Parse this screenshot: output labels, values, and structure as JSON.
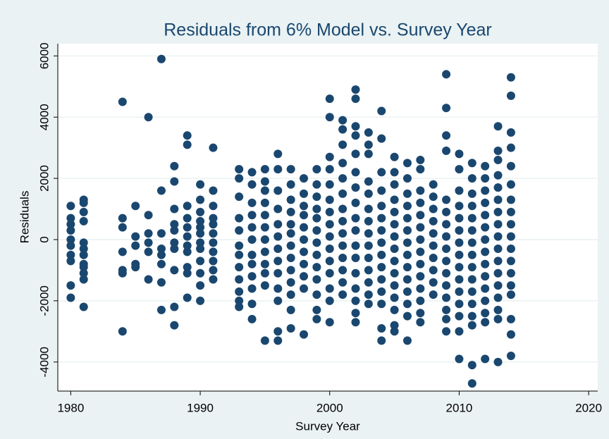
{
  "chart_data": {
    "type": "scatter",
    "title": "Residuals from 6% Model vs. Survey Year",
    "x_label": "Survey Year",
    "y_label": "Residuals",
    "color": "#1a476f",
    "grid": true,
    "xlim": [
      1979,
      2020.7
    ],
    "ylim": [
      -4950,
      6400
    ],
    "xticks": [
      1980,
      1990,
      2000,
      2010,
      2020
    ],
    "yticks": [
      -4000,
      -2000,
      0,
      2000,
      4000,
      6000
    ],
    "x": [
      1980,
      1980,
      1980,
      1980,
      1980,
      1980,
      1980,
      1980,
      1980,
      1980,
      1981,
      1981,
      1981,
      1981,
      1981,
      1981,
      1981,
      1981,
      1981,
      1981,
      1981,
      1981,
      1984,
      1984,
      1984,
      1984,
      1984,
      1984,
      1984,
      1985,
      1985,
      1985,
      1985,
      1985,
      1986,
      1986,
      1986,
      1986,
      1986,
      1986,
      1987,
      1987,
      1987,
      1987,
      1987,
      1987,
      1987,
      1987,
      1988,
      1988,
      1988,
      1988,
      1988,
      1988,
      1988,
      1988,
      1988,
      1988,
      1989,
      1989,
      1989,
      1989,
      1989,
      1989,
      1989,
      1989,
      1989,
      1989,
      1989,
      1990,
      1990,
      1990,
      1990,
      1990,
      1990,
      1990,
      1990,
      1990,
      1990,
      1990,
      1990,
      1991,
      1991,
      1991,
      1991,
      1991,
      1991,
      1991,
      1991,
      1991,
      1991,
      1991,
      1993,
      1993,
      1993,
      1993,
      1993,
      1993,
      1993,
      1993,
      1993,
      1993,
      1993,
      1993,
      1994,
      1994,
      1994,
      1994,
      1994,
      1994,
      1994,
      1994,
      1994,
      1994,
      1994,
      1994,
      1995,
      1995,
      1995,
      1995,
      1995,
      1995,
      1995,
      1995,
      1995,
      1995,
      1995,
      1995,
      1996,
      1996,
      1996,
      1996,
      1996,
      1996,
      1996,
      1996,
      1996,
      1996,
      1996,
      1996,
      1996,
      1997,
      1997,
      1997,
      1997,
      1997,
      1997,
      1997,
      1997,
      1997,
      1997,
      1997,
      1997,
      1997,
      1998,
      1998,
      1998,
      1998,
      1998,
      1998,
      1998,
      1998,
      1998,
      1998,
      1998,
      1999,
      1999,
      1999,
      1999,
      1999,
      1999,
      1999,
      1999,
      1999,
      1999,
      1999,
      1999,
      1999,
      2000,
      2000,
      2000,
      2000,
      2000,
      2000,
      2000,
      2000,
      2000,
      2000,
      2000,
      2000,
      2000,
      2000,
      2000,
      2001,
      2001,
      2001,
      2001,
      2001,
      2001,
      2001,
      2001,
      2001,
      2001,
      2001,
      2001,
      2001,
      2001,
      2002,
      2002,
      2002,
      2002,
      2002,
      2002,
      2002,
      2002,
      2002,
      2002,
      2002,
      2002,
      2002,
      2002,
      2002,
      2002,
      2002,
      2003,
      2003,
      2003,
      2003,
      2003,
      2003,
      2003,
      2003,
      2003,
      2003,
      2003,
      2003,
      2003,
      2003,
      2004,
      2004,
      2004,
      2004,
      2004,
      2004,
      2004,
      2004,
      2004,
      2004,
      2004,
      2004,
      2004,
      2004,
      2004,
      2005,
      2005,
      2005,
      2005,
      2005,
      2005,
      2005,
      2005,
      2005,
      2005,
      2005,
      2005,
      2005,
      2005,
      2005,
      2006,
      2006,
      2006,
      2006,
      2006,
      2006,
      2006,
      2006,
      2006,
      2006,
      2006,
      2006,
      2006,
      2006,
      2007,
      2007,
      2007,
      2007,
      2007,
      2007,
      2007,
      2007,
      2007,
      2007,
      2007,
      2007,
      2007,
      2007,
      2008,
      2008,
      2008,
      2008,
      2008,
      2008,
      2008,
      2008,
      2008,
      2008,
      2009,
      2009,
      2009,
      2009,
      2009,
      2009,
      2009,
      2009,
      2009,
      2009,
      2009,
      2009,
      2009,
      2009,
      2009,
      2009,
      2010,
      2010,
      2010,
      2010,
      2010,
      2010,
      2010,
      2010,
      2010,
      2010,
      2010,
      2010,
      2010,
      2010,
      2010,
      2011,
      2011,
      2011,
      2011,
      2011,
      2011,
      2011,
      2011,
      2011,
      2011,
      2011,
      2011,
      2011,
      2011,
      2011,
      2011,
      2012,
      2012,
      2012,
      2012,
      2012,
      2012,
      2012,
      2012,
      2012,
      2012,
      2012,
      2012,
      2012,
      2012,
      2012,
      2013,
      2013,
      2013,
      2013,
      2013,
      2013,
      2013,
      2013,
      2013,
      2013,
      2013,
      2013,
      2013,
      2013,
      2013,
      2013,
      2013,
      2014,
      2014,
      2014,
      2014,
      2014,
      2014,
      2014,
      2014,
      2014,
      2014,
      2014,
      2014,
      2014,
      2014,
      2014,
      2014,
      2014,
      2014
    ],
    "values": [
      1100,
      700,
      500,
      300,
      0,
      -200,
      -500,
      -700,
      -1500,
      -1900,
      1300,
      1200,
      900,
      600,
      -100,
      -300,
      -500,
      -800,
      -900,
      -1100,
      -1300,
      -2200,
      4500,
      700,
      400,
      -400,
      -1000,
      -1100,
      -3000,
      1100,
      100,
      -200,
      -800,
      -900,
      4000,
      800,
      200,
      -100,
      -400,
      -1300,
      5900,
      1600,
      200,
      -300,
      -500,
      -800,
      -1400,
      -2300,
      2400,
      1900,
      1000,
      500,
      300,
      -100,
      -300,
      -1000,
      -2200,
      -2800,
      3400,
      3100,
      1100,
      700,
      400,
      100,
      -200,
      -400,
      -900,
      -1100,
      -1900,
      1800,
      1300,
      900,
      600,
      400,
      200,
      -100,
      -300,
      -700,
      -1100,
      -1500,
      -2000,
      3000,
      1600,
      1100,
      700,
      500,
      200,
      -100,
      -400,
      -700,
      -1000,
      -1300,
      2300,
      2000,
      1400,
      700,
      300,
      -200,
      -500,
      -900,
      -1300,
      -1700,
      -2000,
      -2200,
      2200,
      1800,
      1200,
      800,
      400,
      0,
      -500,
      -800,
      -1200,
      -1600,
      -2100,
      -2600,
      2300,
      1900,
      1600,
      1200,
      800,
      400,
      0,
      -400,
      -800,
      -1100,
      -1500,
      -3300,
      2800,
      2300,
      1600,
      1000,
      500,
      100,
      -300,
      -700,
      -1100,
      -1600,
      -2000,
      -3000,
      -3300,
      2300,
      1800,
      1300,
      900,
      500,
      200,
      -200,
      -600,
      -1000,
      -1400,
      -1800,
      -2300,
      -2900,
      2000,
      1500,
      1100,
      800,
      400,
      0,
      -400,
      -800,
      -1200,
      -1600,
      -3100,
      2300,
      1800,
      1400,
      1000,
      700,
      300,
      -100,
      -500,
      -900,
      -1300,
      -1800,
      -2300,
      -2600,
      4600,
      4000,
      2700,
      2300,
      1800,
      1300,
      900,
      500,
      100,
      -300,
      -700,
      -1100,
      -1600,
      -2000,
      -2700,
      3900,
      3600,
      3100,
      2500,
      2000,
      1500,
      1000,
      600,
      200,
      -200,
      -600,
      -1000,
      -1400,
      -1800,
      4900,
      4600,
      3700,
      3400,
      2800,
      2200,
      1700,
      1200,
      700,
      300,
      -200,
      -600,
      -1100,
      -1600,
      -2000,
      -2400,
      -2700,
      3500,
      3100,
      2800,
      1900,
      1500,
      1000,
      600,
      200,
      -200,
      -600,
      -1000,
      -1400,
      -1800,
      -2100,
      4200,
      3300,
      2200,
      1600,
      1100,
      700,
      300,
      -100,
      -500,
      -900,
      -1300,
      -1700,
      -2100,
      -2900,
      -3300,
      2700,
      2200,
      1800,
      1300,
      900,
      500,
      100,
      -300,
      -700,
      -1100,
      -1500,
      -1900,
      -2300,
      -2800,
      -3000,
      2500,
      2000,
      1500,
      1100,
      700,
      300,
      -100,
      -500,
      -900,
      -1300,
      -1700,
      -2100,
      -2500,
      -3300,
      2600,
      2300,
      1600,
      1200,
      800,
      400,
      0,
      -400,
      -800,
      -1200,
      -1600,
      -2000,
      -2400,
      -2700,
      1800,
      1400,
      1000,
      600,
      200,
      -200,
      -600,
      -1000,
      -1400,
      -1800,
      5400,
      4300,
      3400,
      2900,
      1300,
      900,
      500,
      100,
      -300,
      -700,
      -1100,
      -1500,
      -1900,
      -2300,
      -2600,
      -3000,
      2800,
      2300,
      1600,
      1100,
      700,
      300,
      -100,
      -500,
      -900,
      -1300,
      -1700,
      -2100,
      -2500,
      -3000,
      -3900,
      2500,
      2000,
      1500,
      1100,
      700,
      300,
      -100,
      -500,
      -900,
      -1300,
      -1700,
      -2100,
      -2500,
      -2800,
      -4100,
      -4700,
      2400,
      2000,
      1600,
      1200,
      800,
      400,
      0,
      -400,
      -800,
      -1200,
      -1600,
      -2000,
      -2400,
      -2700,
      -3900,
      3700,
      2900,
      2600,
      2100,
      1700,
      1300,
      900,
      500,
      100,
      -300,
      -700,
      -1100,
      -1500,
      -1900,
      -2300,
      -2600,
      -4000,
      5300,
      4700,
      3500,
      3000,
      2400,
      1800,
      1300,
      900,
      500,
      100,
      -300,
      -700,
      -1100,
      -1500,
      -1800,
      -2600,
      -3100,
      -3800
    ]
  }
}
